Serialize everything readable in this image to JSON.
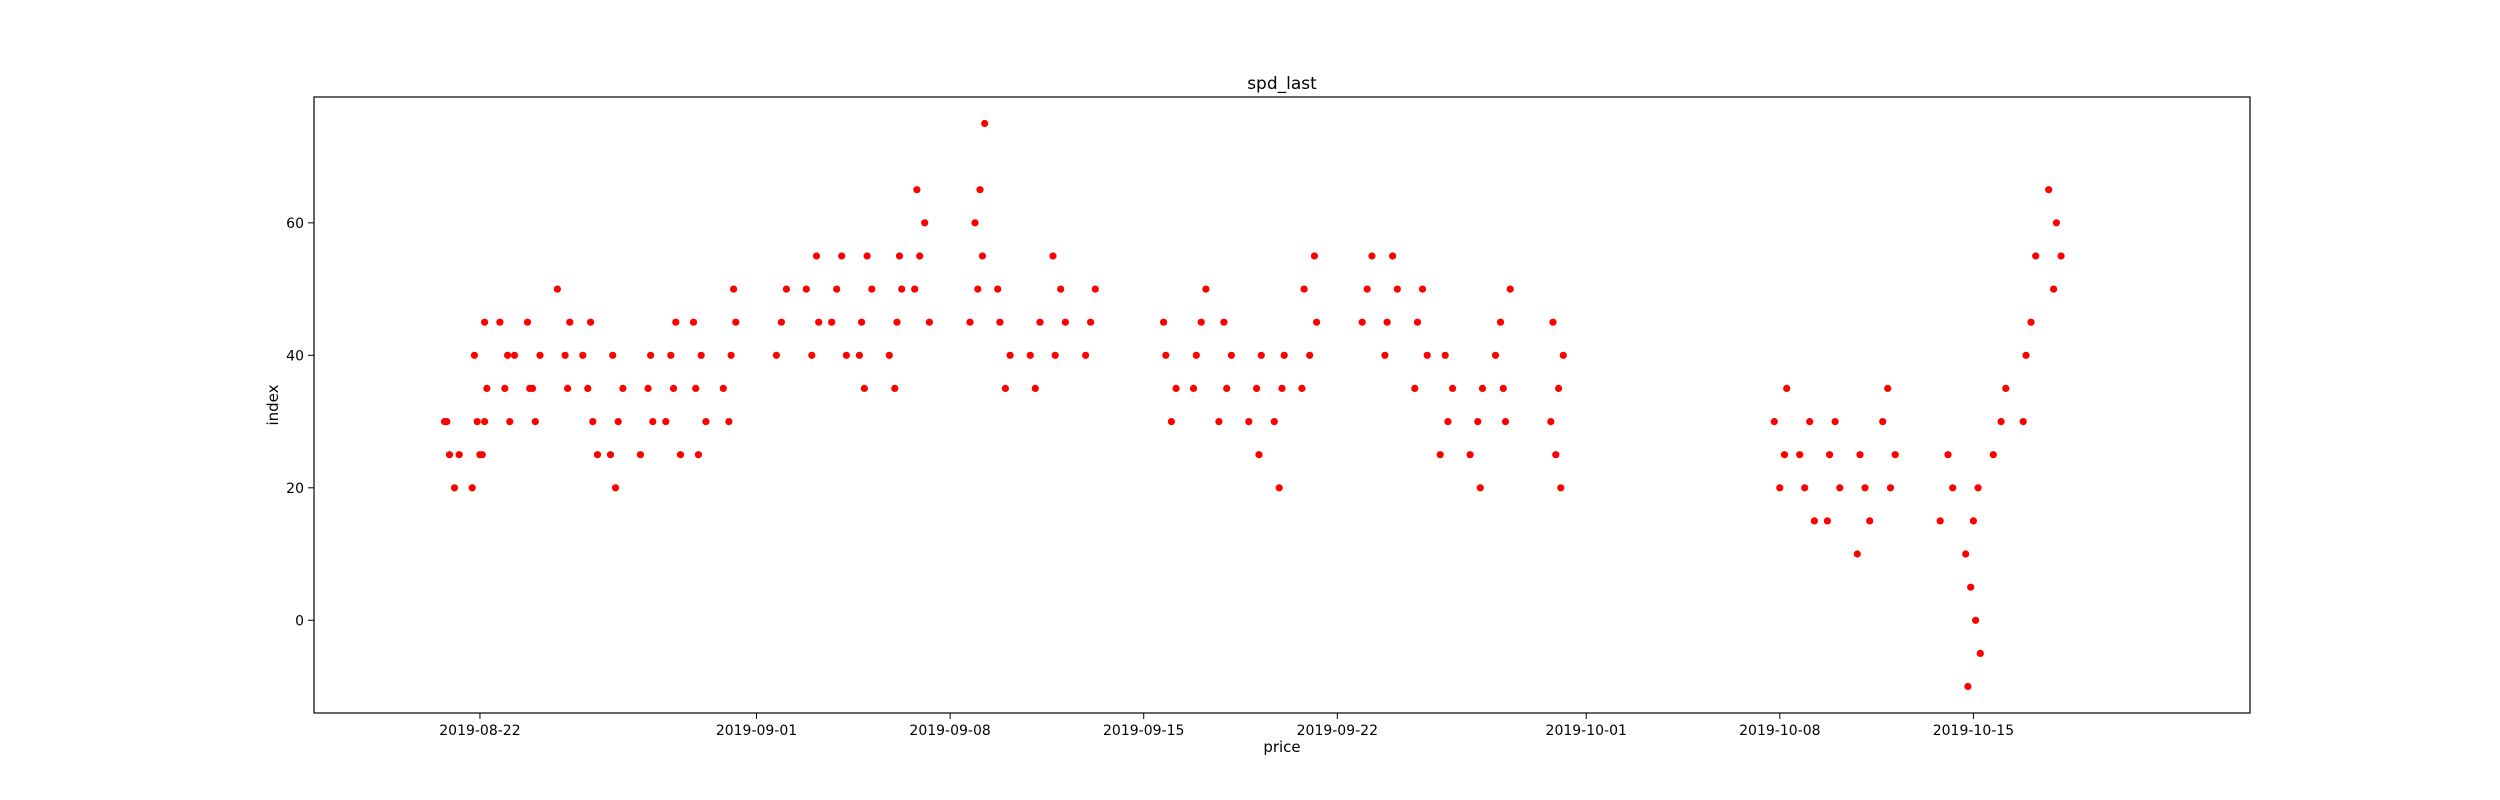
{
  "chart_data": {
    "type": "scatter",
    "title": "spd_last",
    "xlabel": "price",
    "ylabel": "index",
    "xlim": [
      "2019-08-16",
      "2019-10-25"
    ],
    "ylim": [
      -14,
      79
    ],
    "xticks": [
      "2019-08-22",
      "2019-09-01",
      "2019-09-08",
      "2019-09-15",
      "2019-09-22",
      "2019-10-01",
      "2019-10-08",
      "2019-10-15"
    ],
    "yticks": [
      0,
      20,
      40,
      60
    ],
    "grid": false,
    "marker_color": "#ff0000",
    "points": [
      {
        "x": "2019-08-21",
        "y": 30
      },
      {
        "x": "2019-08-21",
        "y": 25
      },
      {
        "x": "2019-08-21",
        "y": 20
      },
      {
        "x": "2019-08-21",
        "y": 25
      },
      {
        "x": "2019-08-21",
        "y": 30
      },
      {
        "x": "2019-08-22",
        "y": 30
      },
      {
        "x": "2019-08-22",
        "y": 25
      },
      {
        "x": "2019-08-22",
        "y": 20
      },
      {
        "x": "2019-08-22",
        "y": 30
      },
      {
        "x": "2019-08-22",
        "y": 25
      },
      {
        "x": "2019-08-22",
        "y": 35
      },
      {
        "x": "2019-08-22",
        "y": 40
      },
      {
        "x": "2019-08-22",
        "y": 45
      },
      {
        "x": "2019-08-23",
        "y": 40
      },
      {
        "x": "2019-08-23",
        "y": 45
      },
      {
        "x": "2019-08-23",
        "y": 35
      },
      {
        "x": "2019-08-23",
        "y": 30
      },
      {
        "x": "2019-08-23",
        "y": 40
      },
      {
        "x": "2019-08-24",
        "y": 35
      },
      {
        "x": "2019-08-24",
        "y": 40
      },
      {
        "x": "2019-08-24",
        "y": 30
      },
      {
        "x": "2019-08-24",
        "y": 45
      },
      {
        "x": "2019-08-24",
        "y": 35
      },
      {
        "x": "2019-08-25",
        "y": 40
      },
      {
        "x": "2019-08-25",
        "y": 45
      },
      {
        "x": "2019-08-25",
        "y": 50
      },
      {
        "x": "2019-08-25",
        "y": 35
      },
      {
        "x": "2019-08-26",
        "y": 45
      },
      {
        "x": "2019-08-26",
        "y": 40
      },
      {
        "x": "2019-08-26",
        "y": 35
      },
      {
        "x": "2019-08-26",
        "y": 30
      },
      {
        "x": "2019-08-26",
        "y": 25
      },
      {
        "x": "2019-08-27",
        "y": 40
      },
      {
        "x": "2019-08-27",
        "y": 35
      },
      {
        "x": "2019-08-27",
        "y": 30
      },
      {
        "x": "2019-08-27",
        "y": 25
      },
      {
        "x": "2019-08-27",
        "y": 20
      },
      {
        "x": "2019-08-28",
        "y": 35
      },
      {
        "x": "2019-08-28",
        "y": 30
      },
      {
        "x": "2019-08-28",
        "y": 25
      },
      {
        "x": "2019-08-28",
        "y": 40
      },
      {
        "x": "2019-08-29",
        "y": 35
      },
      {
        "x": "2019-08-29",
        "y": 30
      },
      {
        "x": "2019-08-29",
        "y": 40
      },
      {
        "x": "2019-08-29",
        "y": 45
      },
      {
        "x": "2019-08-29",
        "y": 25
      },
      {
        "x": "2019-08-30",
        "y": 35
      },
      {
        "x": "2019-08-30",
        "y": 30
      },
      {
        "x": "2019-08-30",
        "y": 40
      },
      {
        "x": "2019-08-30",
        "y": 45
      },
      {
        "x": "2019-08-30",
        "y": 25
      },
      {
        "x": "2019-08-31",
        "y": 40
      },
      {
        "x": "2019-08-31",
        "y": 45
      },
      {
        "x": "2019-08-31",
        "y": 35
      },
      {
        "x": "2019-08-31",
        "y": 50
      },
      {
        "x": "2019-08-31",
        "y": 30
      },
      {
        "x": "2019-09-02",
        "y": 40
      },
      {
        "x": "2019-09-02",
        "y": 45
      },
      {
        "x": "2019-09-02",
        "y": 50
      },
      {
        "x": "2019-09-03",
        "y": 45
      },
      {
        "x": "2019-09-03",
        "y": 50
      },
      {
        "x": "2019-09-03",
        "y": 55
      },
      {
        "x": "2019-09-03",
        "y": 40
      },
      {
        "x": "2019-09-04",
        "y": 45
      },
      {
        "x": "2019-09-04",
        "y": 50
      },
      {
        "x": "2019-09-04",
        "y": 55
      },
      {
        "x": "2019-09-04",
        "y": 40
      },
      {
        "x": "2019-09-05",
        "y": 45
      },
      {
        "x": "2019-09-05",
        "y": 50
      },
      {
        "x": "2019-09-05",
        "y": 55
      },
      {
        "x": "2019-09-05",
        "y": 40
      },
      {
        "x": "2019-09-05",
        "y": 35
      },
      {
        "x": "2019-09-06",
        "y": 45
      },
      {
        "x": "2019-09-06",
        "y": 50
      },
      {
        "x": "2019-09-06",
        "y": 40
      },
      {
        "x": "2019-09-06",
        "y": 55
      },
      {
        "x": "2019-09-06",
        "y": 35
      },
      {
        "x": "2019-09-07",
        "y": 50
      },
      {
        "x": "2019-09-07",
        "y": 55
      },
      {
        "x": "2019-09-07",
        "y": 60
      },
      {
        "x": "2019-09-07",
        "y": 45
      },
      {
        "x": "2019-09-07",
        "y": 65
      },
      {
        "x": "2019-09-09",
        "y": 55
      },
      {
        "x": "2019-09-09",
        "y": 50
      },
      {
        "x": "2019-09-09",
        "y": 45
      },
      {
        "x": "2019-09-09",
        "y": 60
      },
      {
        "x": "2019-09-09",
        "y": 65
      },
      {
        "x": "2019-09-09",
        "y": 75
      },
      {
        "x": "2019-09-10",
        "y": 45
      },
      {
        "x": "2019-09-10",
        "y": 40
      },
      {
        "x": "2019-09-10",
        "y": 35
      },
      {
        "x": "2019-09-10",
        "y": 50
      },
      {
        "x": "2019-09-11",
        "y": 40
      },
      {
        "x": "2019-09-11",
        "y": 35
      },
      {
        "x": "2019-09-11",
        "y": 45
      },
      {
        "x": "2019-09-12",
        "y": 40
      },
      {
        "x": "2019-09-12",
        "y": 45
      },
      {
        "x": "2019-09-12",
        "y": 50
      },
      {
        "x": "2019-09-12",
        "y": 55
      },
      {
        "x": "2019-09-13",
        "y": 40
      },
      {
        "x": "2019-09-13",
        "y": 45
      },
      {
        "x": "2019-09-13",
        "y": 50
      },
      {
        "x": "2019-09-16",
        "y": 40
      },
      {
        "x": "2019-09-16",
        "y": 35
      },
      {
        "x": "2019-09-16",
        "y": 30
      },
      {
        "x": "2019-09-16",
        "y": 45
      },
      {
        "x": "2019-09-17",
        "y": 40
      },
      {
        "x": "2019-09-17",
        "y": 45
      },
      {
        "x": "2019-09-17",
        "y": 50
      },
      {
        "x": "2019-09-17",
        "y": 35
      },
      {
        "x": "2019-09-18",
        "y": 40
      },
      {
        "x": "2019-09-18",
        "y": 35
      },
      {
        "x": "2019-09-18",
        "y": 30
      },
      {
        "x": "2019-09-18",
        "y": 45
      },
      {
        "x": "2019-09-19",
        "y": 35
      },
      {
        "x": "2019-09-19",
        "y": 40
      },
      {
        "x": "2019-09-19",
        "y": 30
      },
      {
        "x": "2019-09-19",
        "y": 25
      },
      {
        "x": "2019-09-20",
        "y": 35
      },
      {
        "x": "2019-09-20",
        "y": 30
      },
      {
        "x": "2019-09-20",
        "y": 20
      },
      {
        "x": "2019-09-20",
        "y": 40
      },
      {
        "x": "2019-09-21",
        "y": 45
      },
      {
        "x": "2019-09-21",
        "y": 50
      },
      {
        "x": "2019-09-21",
        "y": 55
      },
      {
        "x": "2019-09-21",
        "y": 40
      },
      {
        "x": "2019-09-21",
        "y": 35
      },
      {
        "x": "2019-09-23",
        "y": 45
      },
      {
        "x": "2019-09-23",
        "y": 50
      },
      {
        "x": "2019-09-23",
        "y": 55
      },
      {
        "x": "2019-09-24",
        "y": 45
      },
      {
        "x": "2019-09-24",
        "y": 50
      },
      {
        "x": "2019-09-24",
        "y": 55
      },
      {
        "x": "2019-09-24",
        "y": 40
      },
      {
        "x": "2019-09-25",
        "y": 45
      },
      {
        "x": "2019-09-25",
        "y": 50
      },
      {
        "x": "2019-09-25",
        "y": 40
      },
      {
        "x": "2019-09-25",
        "y": 35
      },
      {
        "x": "2019-09-26",
        "y": 35
      },
      {
        "x": "2019-09-26",
        "y": 30
      },
      {
        "x": "2019-09-26",
        "y": 25
      },
      {
        "x": "2019-09-26",
        "y": 40
      },
      {
        "x": "2019-09-27",
        "y": 30
      },
      {
        "x": "2019-09-27",
        "y": 35
      },
      {
        "x": "2019-09-27",
        "y": 25
      },
      {
        "x": "2019-09-27",
        "y": 20
      },
      {
        "x": "2019-09-28",
        "y": 35
      },
      {
        "x": "2019-09-28",
        "y": 40
      },
      {
        "x": "2019-09-28",
        "y": 45
      },
      {
        "x": "2019-09-28",
        "y": 30
      },
      {
        "x": "2019-09-28",
        "y": 50
      },
      {
        "x": "2019-09-30",
        "y": 45
      },
      {
        "x": "2019-09-30",
        "y": 40
      },
      {
        "x": "2019-09-30",
        "y": 35
      },
      {
        "x": "2019-09-30",
        "y": 30
      },
      {
        "x": "2019-09-30",
        "y": 25
      },
      {
        "x": "2019-09-30",
        "y": 20
      },
      {
        "x": "2019-10-08",
        "y": 35
      },
      {
        "x": "2019-10-08",
        "y": 30
      },
      {
        "x": "2019-10-08",
        "y": 25
      },
      {
        "x": "2019-10-08",
        "y": 20
      },
      {
        "x": "2019-10-09",
        "y": 25
      },
      {
        "x": "2019-10-09",
        "y": 20
      },
      {
        "x": "2019-10-09",
        "y": 30
      },
      {
        "x": "2019-10-09",
        "y": 15
      },
      {
        "x": "2019-10-10",
        "y": 25
      },
      {
        "x": "2019-10-10",
        "y": 20
      },
      {
        "x": "2019-10-10",
        "y": 30
      },
      {
        "x": "2019-10-10",
        "y": 15
      },
      {
        "x": "2019-10-11",
        "y": 25
      },
      {
        "x": "2019-10-11",
        "y": 20
      },
      {
        "x": "2019-10-11",
        "y": 15
      },
      {
        "x": "2019-10-11",
        "y": 10
      },
      {
        "x": "2019-10-12",
        "y": 25
      },
      {
        "x": "2019-10-12",
        "y": 20
      },
      {
        "x": "2019-10-12",
        "y": 30
      },
      {
        "x": "2019-10-12",
        "y": 35
      },
      {
        "x": "2019-10-14",
        "y": 25
      },
      {
        "x": "2019-10-14",
        "y": 20
      },
      {
        "x": "2019-10-14",
        "y": 15
      },
      {
        "x": "2019-10-15",
        "y": 20
      },
      {
        "x": "2019-10-15",
        "y": 15
      },
      {
        "x": "2019-10-15",
        "y": 10
      },
      {
        "x": "2019-10-15",
        "y": 5
      },
      {
        "x": "2019-10-15",
        "y": 0
      },
      {
        "x": "2019-10-15",
        "y": -5
      },
      {
        "x": "2019-10-15",
        "y": -10
      },
      {
        "x": "2019-10-16",
        "y": 35
      },
      {
        "x": "2019-10-16",
        "y": 30
      },
      {
        "x": "2019-10-16",
        "y": 25
      },
      {
        "x": "2019-10-17",
        "y": 40
      },
      {
        "x": "2019-10-17",
        "y": 45
      },
      {
        "x": "2019-10-17",
        "y": 55
      },
      {
        "x": "2019-10-17",
        "y": 30
      },
      {
        "x": "2019-10-18",
        "y": 55
      },
      {
        "x": "2019-10-18",
        "y": 60
      },
      {
        "x": "2019-10-18",
        "y": 65
      },
      {
        "x": "2019-10-18",
        "y": 50
      }
    ]
  }
}
